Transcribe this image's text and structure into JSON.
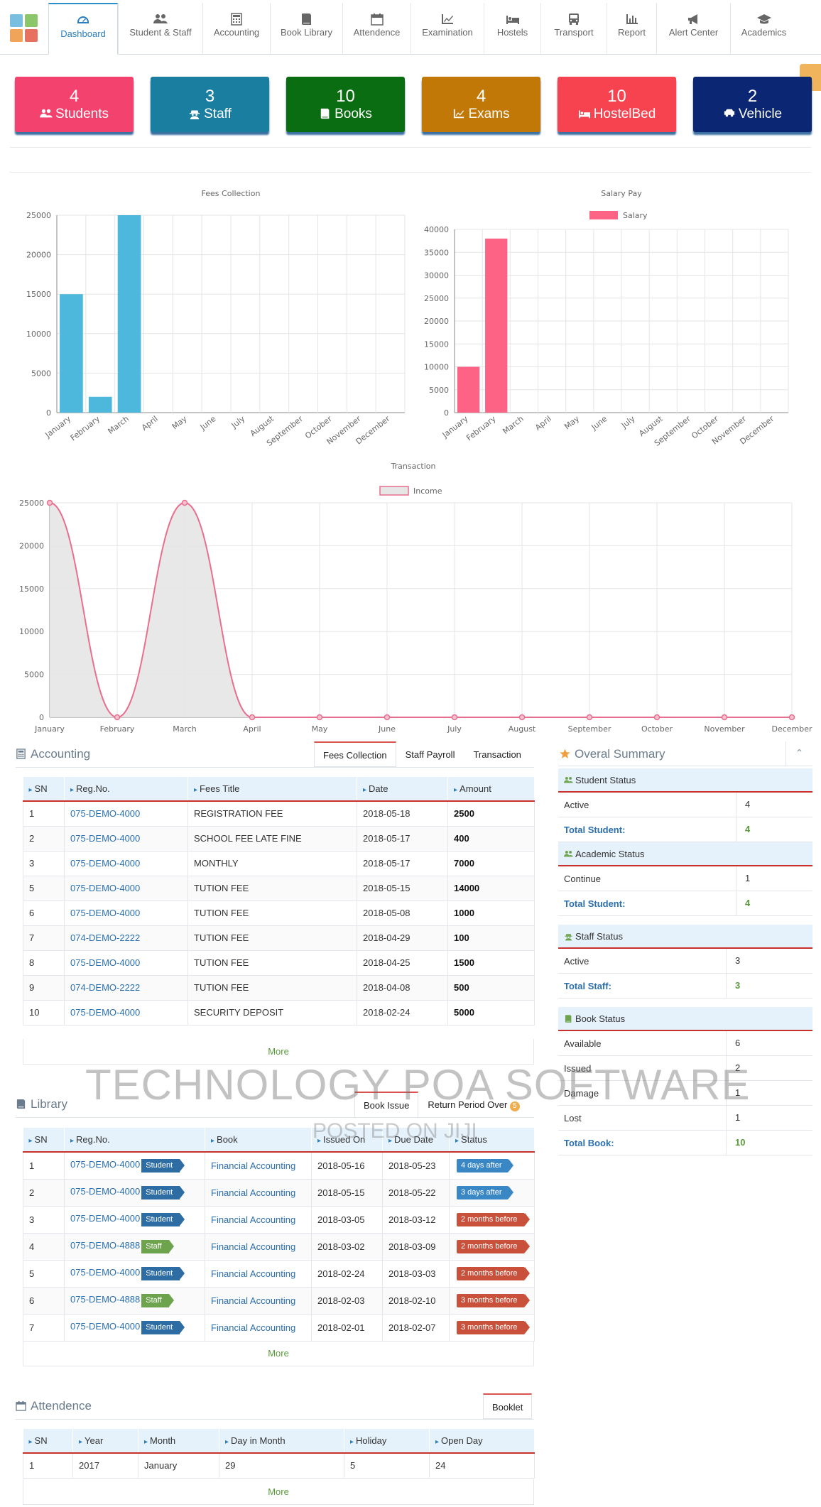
{
  "nav": {
    "items": [
      {
        "label": "Dashboard",
        "icon": "dashboard-icon"
      },
      {
        "label": "Student & Staff",
        "icon": "users-icon"
      },
      {
        "label": "Accounting",
        "icon": "calculator-icon"
      },
      {
        "label": "Book Library",
        "icon": "book-icon"
      },
      {
        "label": "Attendence",
        "icon": "calendar-icon"
      },
      {
        "label": "Examination",
        "icon": "line-chart-icon"
      },
      {
        "label": "Hostels",
        "icon": "bed-icon"
      },
      {
        "label": "Transport",
        "icon": "bus-icon"
      },
      {
        "label": "Report",
        "icon": "bar-chart-icon"
      },
      {
        "label": "Alert Center",
        "icon": "bullhorn-icon"
      },
      {
        "label": "Academics",
        "icon": "graduation-cap-icon"
      }
    ],
    "active": "Dashboard"
  },
  "tiles": [
    {
      "value": "4",
      "label": "Students",
      "color": "#f2426d",
      "icon": "users-icon"
    },
    {
      "value": "3",
      "label": "Staff",
      "color": "#1a7ea1",
      "icon": "user-secret-icon"
    },
    {
      "value": "10",
      "label": "Books",
      "color": "#0b6d12",
      "icon": "book-icon"
    },
    {
      "value": "4",
      "label": "Exams",
      "color": "#c17807",
      "icon": "line-chart-icon"
    },
    {
      "value": "10",
      "label": "HostelBed",
      "color": "#f6434f",
      "icon": "bed-icon"
    },
    {
      "value": "2",
      "label": "Vehicle",
      "color": "#0b2774",
      "icon": "car-icon"
    }
  ],
  "chart_data": [
    {
      "type": "bar",
      "title": "Fees Collection",
      "categories": [
        "January",
        "February",
        "March",
        "April",
        "May",
        "June",
        "July",
        "August",
        "September",
        "October",
        "November",
        "December"
      ],
      "values": [
        15000,
        2000,
        25000,
        0,
        0,
        0,
        0,
        0,
        0,
        0,
        0,
        0
      ],
      "ylim": [
        0,
        25000
      ],
      "yticks": [
        "0",
        "5000",
        "10000",
        "15000",
        "20000",
        "25000"
      ],
      "color": "#4db8dc",
      "grid": true
    },
    {
      "type": "bar",
      "title": "Salary Pay",
      "categories": [
        "January",
        "February",
        "March",
        "April",
        "May",
        "June",
        "July",
        "August",
        "September",
        "October",
        "November",
        "December"
      ],
      "series": [
        {
          "name": "Salary",
          "values": [
            10000,
            38000,
            0,
            0,
            0,
            0,
            0,
            0,
            0,
            0,
            0,
            0
          ]
        }
      ],
      "ylim": [
        0,
        40000
      ],
      "yticks": [
        "0",
        "5000",
        "10000",
        "15000",
        "20000",
        "25000",
        "30000",
        "35000",
        "40000"
      ],
      "color": "#fc6384",
      "legend": "top",
      "grid": true
    },
    {
      "type": "area",
      "title": "Transaction",
      "categories": [
        "January",
        "February",
        "March",
        "April",
        "May",
        "June",
        "July",
        "August",
        "September",
        "October",
        "November",
        "December"
      ],
      "series": [
        {
          "name": "Income",
          "values": [
            25000,
            0,
            25000,
            0,
            0,
            0,
            0,
            0,
            0,
            0,
            0,
            0
          ]
        }
      ],
      "ylim": [
        0,
        25000
      ],
      "yticks": [
        "0",
        "5000",
        "10000",
        "15000",
        "20000",
        "25000"
      ],
      "color": "#e86f8f",
      "fill": "#e6e6e6",
      "legend": "top",
      "grid": true
    }
  ],
  "accounting": {
    "title": "Accounting",
    "tabs": [
      "Fees Collection",
      "Staff Payroll",
      "Transaction"
    ],
    "headers": [
      "SN",
      "Reg.No.",
      "Fees Title",
      "Date",
      "Amount"
    ],
    "rows": [
      [
        "1",
        "075-DEMO-4000",
        "REGISTRATION FEE",
        "2018-05-18",
        "2500"
      ],
      [
        "2",
        "075-DEMO-4000",
        "SCHOOL FEE LATE FINE",
        "2018-05-17",
        "400"
      ],
      [
        "3",
        "075-DEMO-4000",
        "MONTHLY",
        "2018-05-17",
        "7000"
      ],
      [
        "5",
        "075-DEMO-4000",
        "TUTION FEE",
        "2018-05-15",
        "14000"
      ],
      [
        "6",
        "075-DEMO-4000",
        "TUTION FEE",
        "2018-05-08",
        "1000"
      ],
      [
        "7",
        "074-DEMO-2222",
        "TUTION FEE",
        "2018-04-29",
        "100"
      ],
      [
        "8",
        "075-DEMO-4000",
        "TUTION FEE",
        "2018-04-25",
        "1500"
      ],
      [
        "9",
        "074-DEMO-2222",
        "TUTION FEE",
        "2018-04-08",
        "500"
      ],
      [
        "10",
        "075-DEMO-4000",
        "SECURITY DEPOSIT",
        "2018-02-24",
        "5000"
      ]
    ],
    "more": "More"
  },
  "summary": {
    "title": "Overal Summary",
    "student": {
      "title": "Student Status",
      "rows": [
        [
          "Active",
          "4"
        ]
      ],
      "total": [
        "Total Student:",
        "4"
      ]
    },
    "academic": {
      "title": "Academic Status",
      "rows": [
        [
          "Continue",
          "1"
        ]
      ],
      "total": [
        "Total Student:",
        "4"
      ]
    },
    "staff": {
      "title": "Staff Status",
      "rows": [
        [
          "Active",
          "3"
        ]
      ],
      "total": [
        "Total Staff:",
        "3"
      ]
    },
    "book": {
      "title": "Book Status",
      "rows": [
        [
          "Available",
          "6"
        ],
        [
          "Issued",
          "2"
        ],
        [
          "Damage",
          "1"
        ],
        [
          "Lost",
          "1"
        ]
      ],
      "total": [
        "Total Book:",
        "10"
      ]
    }
  },
  "library": {
    "title": "Library",
    "tabs": [
      "Book Issue",
      "Return Period Over"
    ],
    "tab_badge": "5",
    "headers": [
      "SN",
      "Reg.No.",
      "Book",
      "Issued On",
      "Due Date",
      "Status"
    ],
    "rows": [
      [
        "1",
        "075-DEMO-4000",
        "Student",
        "Financial Accounting",
        "2018-05-16",
        "2018-05-23",
        "4 days after",
        "after"
      ],
      [
        "2",
        "075-DEMO-4000",
        "Student",
        "Financial Accounting",
        "2018-05-15",
        "2018-05-22",
        "3 days after",
        "after"
      ],
      [
        "3",
        "075-DEMO-4000",
        "Student",
        "Financial Accounting",
        "2018-03-05",
        "2018-03-12",
        "2 months before",
        "before"
      ],
      [
        "4",
        "075-DEMO-4888",
        "Staff",
        "Financial Accounting",
        "2018-03-02",
        "2018-03-09",
        "2 months before",
        "before"
      ],
      [
        "5",
        "075-DEMO-4000",
        "Student",
        "Financial Accounting",
        "2018-02-24",
        "2018-03-03",
        "2 months before",
        "before"
      ],
      [
        "6",
        "075-DEMO-4888",
        "Staff",
        "Financial Accounting",
        "2018-02-03",
        "2018-02-10",
        "3 months before",
        "before"
      ],
      [
        "7",
        "075-DEMO-4000",
        "Student",
        "Financial Accounting",
        "2018-02-01",
        "2018-02-07",
        "3 months before",
        "before"
      ]
    ],
    "more": "More"
  },
  "attendence": {
    "title": "Attendence",
    "tabs": [
      "Booklet"
    ],
    "headers": [
      "SN",
      "Year",
      "Month",
      "Day in Month",
      "Holiday",
      "Open Day"
    ],
    "rows": [
      [
        "1",
        "2017",
        "January",
        "29",
        "5",
        "24"
      ]
    ],
    "more": "More"
  },
  "watermark": {
    "line1": "TECHNOLOGY POA SOFTWARE",
    "line2": "POSTED ON JIJI"
  }
}
